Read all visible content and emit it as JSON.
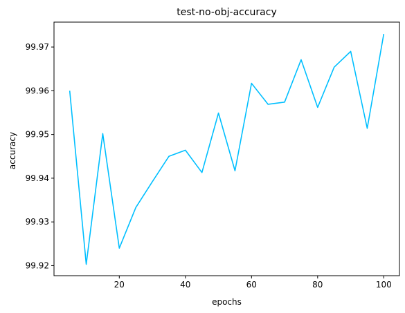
{
  "chart_data": {
    "type": "line",
    "title": "test-no-obj-accuracy",
    "xlabel": "epochs",
    "ylabel": "accuracy",
    "xlim": [
      0.25,
      104.75
    ],
    "ylim": [
      99.9177,
      99.9757
    ],
    "xticks": [
      20,
      40,
      60,
      80,
      100
    ],
    "xtick_labels": [
      "20",
      "40",
      "60",
      "80",
      "100"
    ],
    "yticks": [
      99.92,
      99.93,
      99.94,
      99.95,
      99.96,
      99.97
    ],
    "ytick_labels": [
      "99.92",
      "99.93",
      "99.94",
      "99.95",
      "99.96",
      "99.97"
    ],
    "grid": false,
    "series": [
      {
        "color": "#00bfff",
        "x": [
          5,
          10,
          15,
          20,
          25,
          30,
          35,
          40,
          45,
          50,
          55,
          60,
          65,
          70,
          75,
          80,
          85,
          90,
          95,
          100
        ],
        "y": [
          99.96,
          99.9203,
          99.9502,
          99.924,
          99.9333,
          99.9392,
          99.945,
          99.9464,
          99.9413,
          99.9549,
          99.9417,
          99.9617,
          99.9569,
          99.9574,
          99.9671,
          99.9562,
          99.9654,
          99.969,
          99.9514,
          99.973
        ]
      }
    ]
  }
}
